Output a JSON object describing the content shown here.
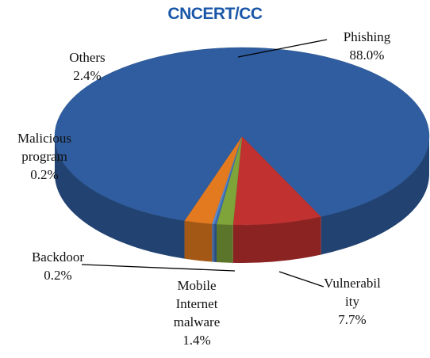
{
  "chart_data": {
    "type": "pie",
    "title": "CNCERT/CC",
    "categories": [
      "Phishing",
      "Vulnerability",
      "Mobile Internet malware",
      "Backdoor",
      "Malicious program",
      "Others"
    ],
    "values": [
      88.0,
      7.7,
      1.4,
      0.2,
      0.2,
      2.4
    ],
    "value_labels": [
      "88.0%",
      "7.7%",
      "1.4%",
      "0.2%",
      "0.2%",
      "2.4%"
    ],
    "colors": [
      "#2f5d9f",
      "#c0312f",
      "#7fa43a",
      "#3b6bb0",
      "#5b8ad0",
      "#e47a1f"
    ]
  }
}
